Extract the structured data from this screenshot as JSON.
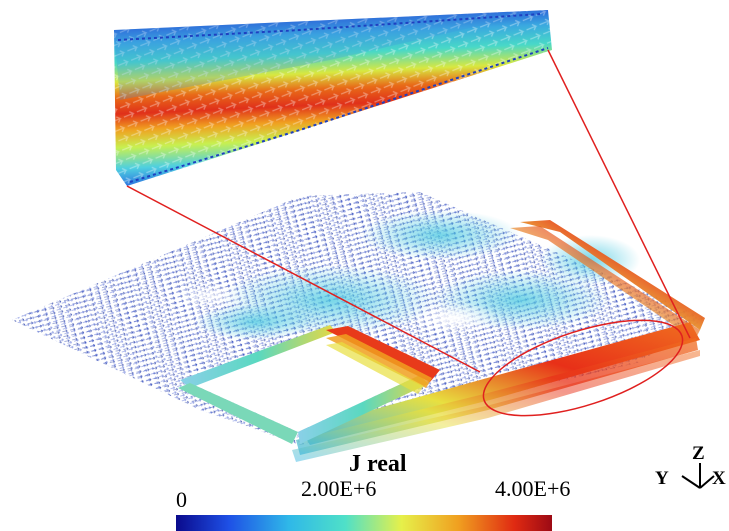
{
  "colorbar": {
    "title": "J real",
    "ticks": [
      "0",
      "2.00E+6",
      "4.00E+6"
    ],
    "colors": [
      "#0a0a8c",
      "#1e50e6",
      "#2fb8e8",
      "#4fe0c8",
      "#e6f04a",
      "#f0a020",
      "#e02a12",
      "#9c0a14"
    ]
  },
  "axes": {
    "z_label": "Z",
    "y_label": "Y",
    "x_label": "X"
  },
  "annotation_color": "#e0201f"
}
